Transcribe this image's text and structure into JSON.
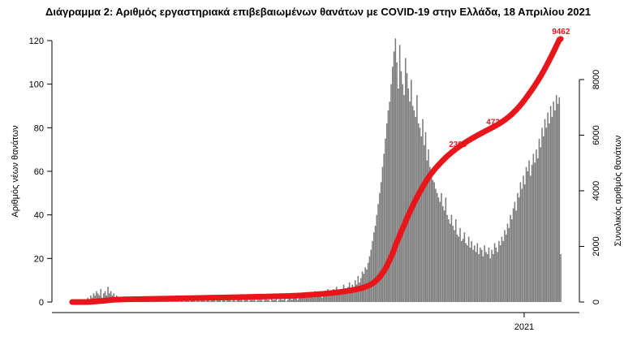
{
  "chart_data": {
    "type": "bar",
    "title": "Διάγραμμα 2: Αριθμός εργαστηριακά επιβεβαιωμένων θανάτων με COVID-19 στην Ελλάδα, 18 Απριλίου 2021",
    "ylabel": "Αριθμός νέων θανάτων",
    "ylabel_right": "Συνολικός αριθμός θανάτων",
    "ylim": [
      0,
      125
    ],
    "yticks": [
      0,
      20,
      40,
      60,
      80,
      100,
      120
    ],
    "ylim_right": [
      0,
      10000
    ],
    "yticks_right": [
      0,
      2000,
      4000,
      6000,
      8000
    ],
    "x_tick_label": "2021",
    "x_tick_index": 315,
    "daily_deaths": [
      0,
      0,
      0,
      0,
      0,
      0,
      0,
      0,
      0,
      0,
      0,
      2,
      1,
      3,
      2,
      4,
      3,
      5,
      4,
      3,
      6,
      2,
      4,
      5,
      3,
      7,
      4,
      5,
      3,
      4,
      2,
      3,
      1,
      2,
      1,
      1,
      2,
      1,
      0,
      1,
      1,
      0,
      2,
      1,
      1,
      0,
      1,
      0,
      1,
      1,
      0,
      2,
      1,
      0,
      1,
      1,
      0,
      1,
      2,
      0,
      1,
      1,
      0,
      1,
      0,
      1,
      2,
      1,
      0,
      1,
      1,
      0,
      2,
      1,
      1,
      0,
      1,
      1,
      0,
      1,
      2,
      1,
      0,
      1,
      1,
      2,
      0,
      1,
      1,
      0,
      1,
      2,
      1,
      0,
      1,
      1,
      0,
      2,
      1,
      1,
      0,
      1,
      2,
      1,
      0,
      1,
      1,
      0,
      1,
      1,
      2,
      0,
      1,
      1,
      0,
      1,
      2,
      1,
      1,
      0,
      1,
      1,
      2,
      0,
      1,
      1,
      1,
      2,
      0,
      1,
      1,
      2,
      1,
      0,
      1,
      2,
      1,
      1,
      0,
      2,
      1,
      1,
      2,
      0,
      1,
      2,
      1,
      1,
      2,
      0,
      1,
      2,
      3,
      1,
      2,
      2,
      3,
      1,
      2,
      3,
      2,
      4,
      2,
      3,
      3,
      2,
      4,
      3,
      2,
      5,
      3,
      4,
      3,
      5,
      2,
      4,
      5,
      3,
      6,
      4,
      5,
      3,
      6,
      4,
      7,
      5,
      4,
      6,
      5,
      8,
      6,
      5,
      7,
      9,
      6,
      8,
      7,
      10,
      8,
      12,
      9,
      11,
      14,
      13,
      16,
      15,
      18,
      21,
      24,
      28,
      32,
      35,
      40,
      45,
      50,
      55,
      62,
      68,
      75,
      82,
      88,
      92,
      100,
      108,
      115,
      121,
      110,
      98,
      118,
      106,
      100,
      95,
      112,
      105,
      98,
      92,
      102,
      90,
      88,
      85,
      95,
      82,
      80,
      76,
      84,
      72,
      78,
      65,
      70,
      62,
      60,
      56,
      55,
      52,
      50,
      48,
      46,
      50,
      44,
      42,
      48,
      40,
      38,
      36,
      40,
      35,
      33,
      38,
      31,
      30,
      34,
      28,
      29,
      32,
      27,
      26,
      30,
      25,
      28,
      24,
      26,
      23,
      27,
      22,
      25,
      24,
      21,
      26,
      23,
      22,
      25,
      20,
      24,
      22,
      27,
      25,
      23,
      28,
      26,
      30,
      28,
      33,
      31,
      36,
      34,
      40,
      38,
      43,
      46,
      42,
      50,
      48,
      55,
      52,
      58,
      54,
      62,
      60,
      65,
      58,
      63,
      68,
      64,
      70,
      66,
      75,
      71,
      80,
      76,
      84,
      80,
      87,
      82,
      90,
      85,
      92,
      88,
      95,
      91,
      94,
      22
    ]
  }
}
